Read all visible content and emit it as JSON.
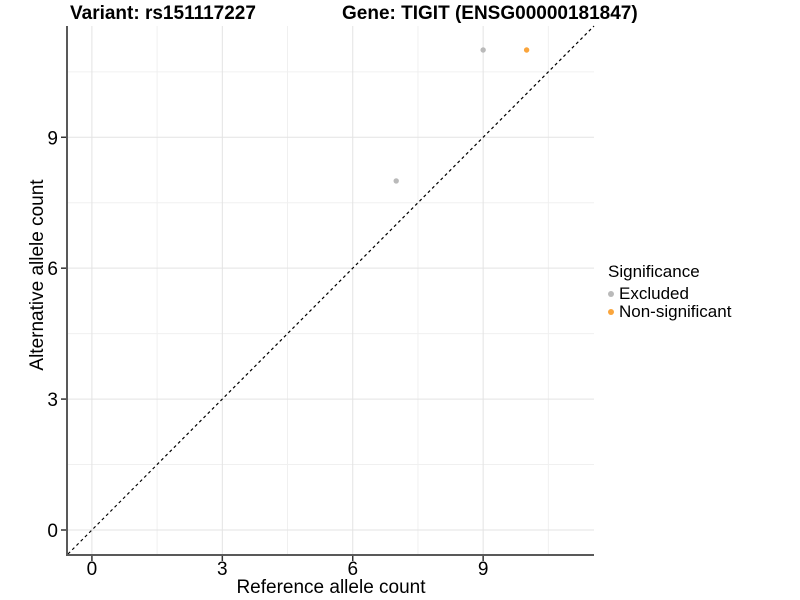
{
  "title": {
    "variant": "Variant: rs151117227",
    "gene": "Gene: TIGIT (ENSG00000181847)"
  },
  "chart_data": {
    "type": "scatter",
    "xlabel": "Reference allele count",
    "ylabel": "Alternative allele count",
    "xlim": [
      -0.55,
      11.55
    ],
    "ylim": [
      -0.55,
      11.55
    ],
    "xticks": [
      0,
      3,
      6,
      9
    ],
    "yticks": [
      0,
      3,
      6,
      9
    ],
    "minor_xticks": [
      1.5,
      4.5,
      7.5,
      10.5
    ],
    "minor_yticks": [
      1.5,
      4.5,
      7.5,
      10.5
    ],
    "grid": true,
    "identity_line": {
      "style": "dashed",
      "color": "#000000",
      "from": [
        -0.55,
        -0.55
      ],
      "to": [
        11.55,
        11.55
      ]
    },
    "series": [
      {
        "name": "Excluded",
        "color": "#BABABA",
        "points": [
          {
            "x": 7,
            "y": 8
          },
          {
            "x": 9,
            "y": 11
          }
        ]
      },
      {
        "name": "Non-significant",
        "color": "#FAA53C",
        "points": [
          {
            "x": 10,
            "y": 11
          }
        ]
      }
    ],
    "legend": {
      "title": "Significance",
      "position": "right"
    },
    "colors": {
      "major_grid": "#E3E3E3",
      "minor_grid": "#F0F0F0",
      "axis_line": "#595959",
      "tick_mark": "#333333",
      "text": "#000000"
    }
  }
}
